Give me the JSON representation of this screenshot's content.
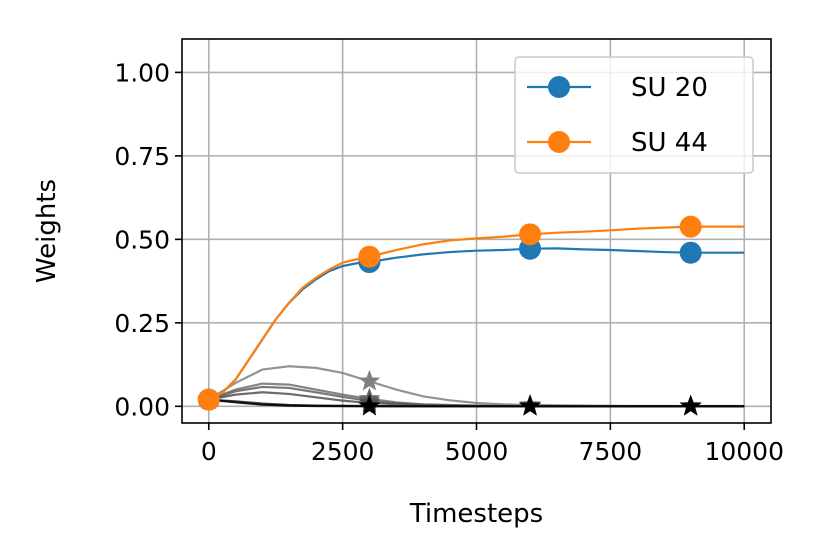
{
  "chart_data": {
    "type": "line",
    "title": "",
    "xlabel": "Timesteps",
    "ylabel": "Weights",
    "xlim": [
      -500,
      10500
    ],
    "ylim": [
      -0.05,
      1.1
    ],
    "xticks": [
      0,
      2500,
      5000,
      7500,
      10000
    ],
    "yticks": [
      0.0,
      0.25,
      0.5,
      0.75,
      1.0
    ],
    "xtick_labels": [
      "0",
      "2500",
      "5000",
      "7500",
      "10000"
    ],
    "ytick_labels": [
      "0.00",
      "0.25",
      "0.50",
      "0.75",
      "1.00"
    ],
    "grid": true,
    "legend_position": "top-right",
    "series": [
      {
        "name": "SU 20",
        "color": "#1f77b4",
        "marker": "circle",
        "x": [
          0,
          250,
          500,
          750,
          1000,
          1250,
          1500,
          1750,
          2000,
          2250,
          2500,
          2750,
          3000,
          3500,
          4000,
          4500,
          5000,
          5500,
          6000,
          6500,
          7000,
          7500,
          8000,
          8500,
          9000,
          9500,
          10000
        ],
        "y": [
          0.02,
          0.04,
          0.08,
          0.14,
          0.2,
          0.26,
          0.31,
          0.35,
          0.38,
          0.405,
          0.42,
          0.428,
          0.432,
          0.445,
          0.455,
          0.462,
          0.466,
          0.468,
          0.472,
          0.473,
          0.47,
          0.468,
          0.465,
          0.462,
          0.46,
          0.46,
          0.46
        ],
        "marker_x": [
          0,
          3000,
          6000,
          9000
        ],
        "marker_y": [
          0.02,
          0.432,
          0.472,
          0.46
        ]
      },
      {
        "name": "SU 44",
        "color": "#ff7f0e",
        "marker": "circle",
        "x": [
          0,
          250,
          500,
          750,
          1000,
          1250,
          1500,
          1750,
          2000,
          2250,
          2500,
          2750,
          3000,
          3500,
          4000,
          4500,
          5000,
          5500,
          6000,
          6500,
          7000,
          7500,
          8000,
          8500,
          9000,
          9500,
          10000
        ],
        "y": [
          0.02,
          0.04,
          0.08,
          0.14,
          0.2,
          0.26,
          0.31,
          0.355,
          0.385,
          0.41,
          0.43,
          0.44,
          0.448,
          0.468,
          0.485,
          0.497,
          0.503,
          0.508,
          0.515,
          0.52,
          0.523,
          0.527,
          0.532,
          0.535,
          0.538,
          0.538,
          0.538
        ],
        "marker_x": [
          0,
          3000,
          6000,
          9000
        ],
        "marker_y": [
          0.02,
          0.448,
          0.515,
          0.538
        ]
      }
    ],
    "other_series": [
      {
        "color": "#808080",
        "marker": "star",
        "x": [
          0,
          500,
          1000,
          1500,
          2000,
          2500,
          3000,
          3500,
          4000,
          4500,
          5000,
          5500,
          6000,
          7000,
          8000,
          9000,
          10000
        ],
        "y": [
          0.02,
          0.07,
          0.11,
          0.12,
          0.115,
          0.1,
          0.075,
          0.05,
          0.03,
          0.018,
          0.01,
          0.006,
          0.004,
          0.002,
          0.001,
          0.001,
          0.001
        ],
        "marker_x": [
          0,
          3000,
          6000,
          9000
        ],
        "marker_y": [
          0.02,
          0.075,
          0.004,
          0.001
        ]
      },
      {
        "color": "#707070",
        "marker": "star",
        "x": [
          0,
          500,
          1000,
          1500,
          2000,
          2500,
          3000,
          3500,
          4000,
          5000,
          6000,
          8000,
          10000
        ],
        "y": [
          0.02,
          0.05,
          0.068,
          0.065,
          0.05,
          0.035,
          0.022,
          0.012,
          0.006,
          0.002,
          0.001,
          0.0,
          0.0
        ],
        "marker_x": [
          0,
          3000,
          6000,
          9000
        ],
        "marker_y": [
          0.02,
          0.022,
          0.001,
          0.0
        ]
      },
      {
        "color": "#606060",
        "marker": "star",
        "x": [
          0,
          500,
          1000,
          1500,
          2000,
          2500,
          3000,
          3500,
          4000,
          5000,
          6000,
          8000,
          10000
        ],
        "y": [
          0.02,
          0.045,
          0.058,
          0.055,
          0.042,
          0.028,
          0.016,
          0.009,
          0.005,
          0.001,
          0.0,
          0.0,
          0.0
        ],
        "marker_x": [
          0,
          3000,
          6000,
          9000
        ],
        "marker_y": [
          0.02,
          0.016,
          0.0,
          0.0
        ]
      },
      {
        "color": "#505050",
        "marker": "star",
        "x": [
          0,
          500,
          1000,
          1500,
          2000,
          2500,
          3000,
          4000,
          5000,
          6000,
          8000,
          10000
        ],
        "y": [
          0.02,
          0.035,
          0.042,
          0.037,
          0.027,
          0.017,
          0.01,
          0.003,
          0.001,
          0.0,
          0.0,
          0.0
        ],
        "marker_x": [
          0,
          3000,
          6000,
          9000
        ],
        "marker_y": [
          0.02,
          0.01,
          0.0,
          0.0
        ]
      },
      {
        "color": "#202020",
        "marker": "star",
        "x": [
          0,
          500,
          1000,
          1500,
          2000,
          3000,
          4000,
          6000,
          10000
        ],
        "y": [
          0.02,
          0.015,
          0.008,
          0.004,
          0.002,
          0.001,
          0.0,
          0.0,
          0.0
        ],
        "marker_x": [
          0,
          3000,
          6000,
          9000
        ],
        "marker_y": [
          0.02,
          0.001,
          0.0,
          0.0
        ]
      },
      {
        "color": "#000000",
        "marker": "star",
        "x": [
          0,
          500,
          1000,
          1500,
          2000,
          3000,
          4000,
          6000,
          10000
        ],
        "y": [
          0.02,
          0.012,
          0.005,
          0.002,
          0.001,
          0.0,
          0.0,
          0.0,
          0.0
        ],
        "marker_x": [
          0,
          3000,
          6000,
          9000
        ],
        "marker_y": [
          0.02,
          0.0,
          0.0,
          0.0
        ]
      }
    ]
  }
}
